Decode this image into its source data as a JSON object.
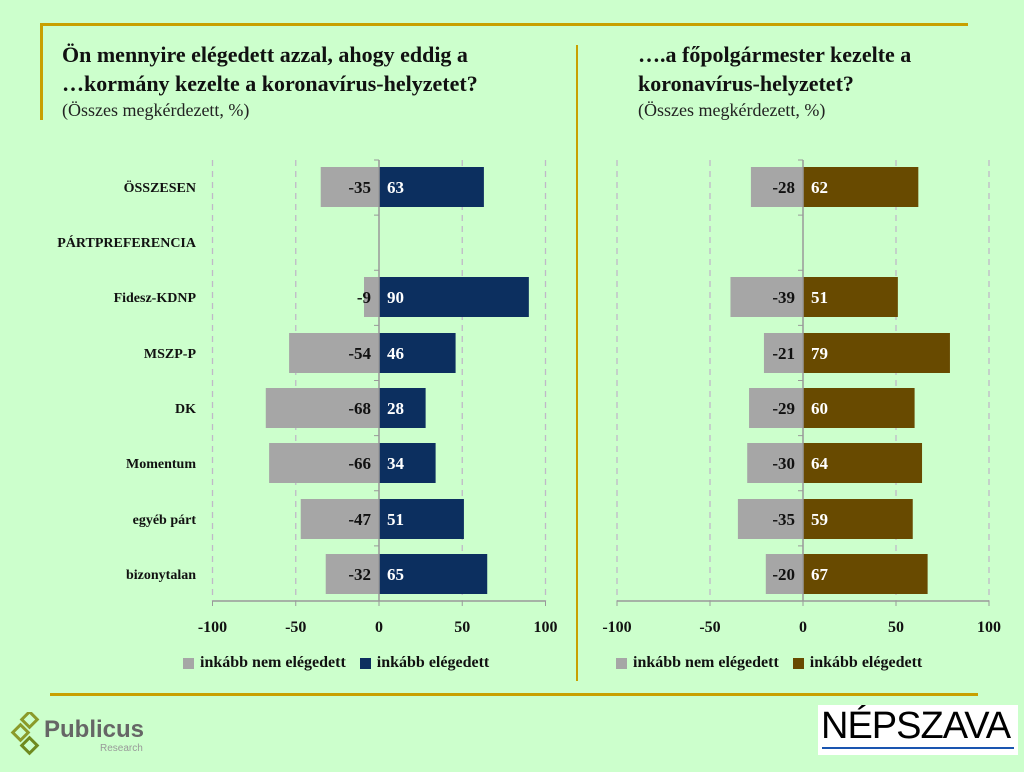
{
  "colors": {
    "neg": "#a6a6a6",
    "gov": "#0c2f5f",
    "mayor": "#684a00",
    "gold": "#c8a000"
  },
  "chart_data": [
    {
      "type": "bar",
      "title": "Ön mennyire elégedett azzal, ahogy eddig a …kormány kezelte a koronavírus-helyzetet?",
      "title_line1": "Ön mennyire elégedett azzal, ahogy eddig a",
      "title_line2": "…kormány kezelte a koronavírus-helyzetet?",
      "subtitle": "(Összes megkérdezett, %)",
      "categories": [
        "ÖSSZESEN",
        "PÁRTPREFERENCIA",
        "Fidesz-KDNP",
        "MSZP-P",
        "DK",
        "Momentum",
        "egyéb párt",
        "bizonytalan"
      ],
      "series": [
        {
          "name": "inkább nem elégedett",
          "values": [
            -35,
            null,
            -9,
            -54,
            -68,
            -66,
            -47,
            -32
          ]
        },
        {
          "name": "inkább elégedett",
          "values": [
            63,
            null,
            90,
            46,
            28,
            34,
            51,
            65
          ]
        }
      ],
      "xlim": [
        -100,
        100
      ],
      "xticks": [
        "-100",
        "-50",
        "0",
        "50",
        "100"
      ],
      "grid": true,
      "legend": "bottom"
    },
    {
      "type": "bar",
      "title": "….a főpolgármester kezelte a koronavírus-helyzetet?",
      "title_line1": "….a főpolgármester kezelte a",
      "title_line2": "koronavírus-helyzetet?",
      "subtitle": "(Összes megkérdezett, %)",
      "categories": [
        "ÖSSZESEN",
        "PÁRTPREFERENCIA",
        "Fidesz-KDNP",
        "MSZP-P",
        "DK",
        "Momentum",
        "egyéb párt",
        "bizonytalan"
      ],
      "series": [
        {
          "name": "inkább nem elégedett",
          "values": [
            -28,
            null,
            -39,
            -21,
            -29,
            -30,
            -35,
            -20
          ]
        },
        {
          "name": "inkább elégedett",
          "values": [
            62,
            null,
            51,
            79,
            60,
            64,
            59,
            67
          ]
        }
      ],
      "xlim": [
        -100,
        100
      ],
      "xticks": [
        "-100",
        "-50",
        "0",
        "50",
        "100"
      ],
      "grid": true,
      "legend": "bottom"
    }
  ],
  "logos": {
    "publicus": "Publicus",
    "publicus_sub": "Research",
    "nepszava": "NÉPSZAVA"
  }
}
